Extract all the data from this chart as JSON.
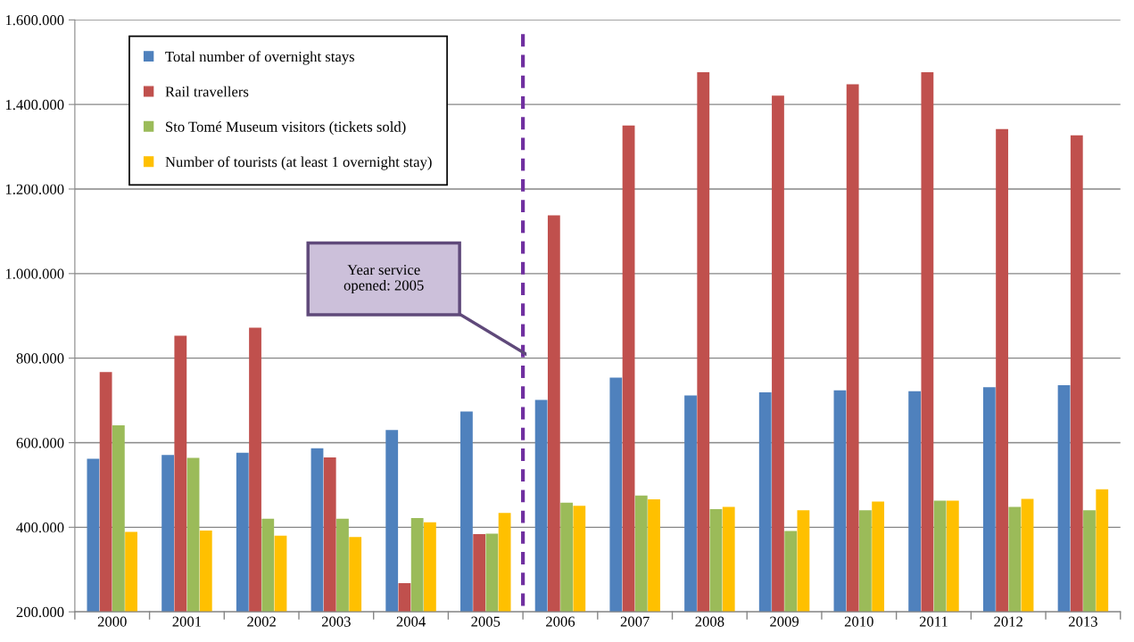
{
  "chart_data": {
    "type": "bar",
    "categories": [
      "2000",
      "2001",
      "2002",
      "2003",
      "2004",
      "2005",
      "2006",
      "2007",
      "2008",
      "2009",
      "2010",
      "2011",
      "2012",
      "2013"
    ],
    "series": [
      {
        "name": "Total number of overnight stays",
        "color": "#4f81bd",
        "values": [
          562000,
          571000,
          576000,
          587000,
          630000,
          674000,
          701000,
          754000,
          712000,
          719000,
          724000,
          722000,
          731000,
          736000
        ]
      },
      {
        "name": "Rail travellers",
        "color": "#c0504d",
        "values": [
          767000,
          853000,
          872000,
          565000,
          268000,
          384000,
          1138000,
          1350000,
          1476000,
          1421000,
          1448000,
          1476000,
          1342000,
          1327000
        ]
      },
      {
        "name": "Sto Tomé Museum visitors (tickets sold)",
        "color": "#9bbb59",
        "values": [
          641000,
          564000,
          420000,
          420000,
          422000,
          385000,
          458000,
          475000,
          443000,
          391000,
          440000,
          463000,
          448000,
          440000
        ]
      },
      {
        "name": "Number of tourists (at least 1 overnight stay)",
        "color": "#ffc000",
        "values": [
          389000,
          392000,
          380000,
          377000,
          412000,
          434000,
          451000,
          466000,
          448000,
          440000,
          461000,
          463000,
          467000,
          490000
        ]
      }
    ],
    "ylim": [
      200000,
      1600000
    ],
    "yticks": [
      {
        "value": 200000,
        "label": "200.000"
      },
      {
        "value": 400000,
        "label": "400.000"
      },
      {
        "value": 600000,
        "label": "600.000"
      },
      {
        "value": 800000,
        "label": "800.000"
      },
      {
        "value": 1000000,
        "label": "1.000.000"
      },
      {
        "value": 1200000,
        "label": "1.200.000"
      },
      {
        "value": 1400000,
        "label": "1.400.000"
      },
      {
        "value": 1600000,
        "label": "1.600.000"
      }
    ],
    "annotations": [
      "Year service\nopened: 2005"
    ],
    "grid": "y",
    "legend": "top left"
  }
}
